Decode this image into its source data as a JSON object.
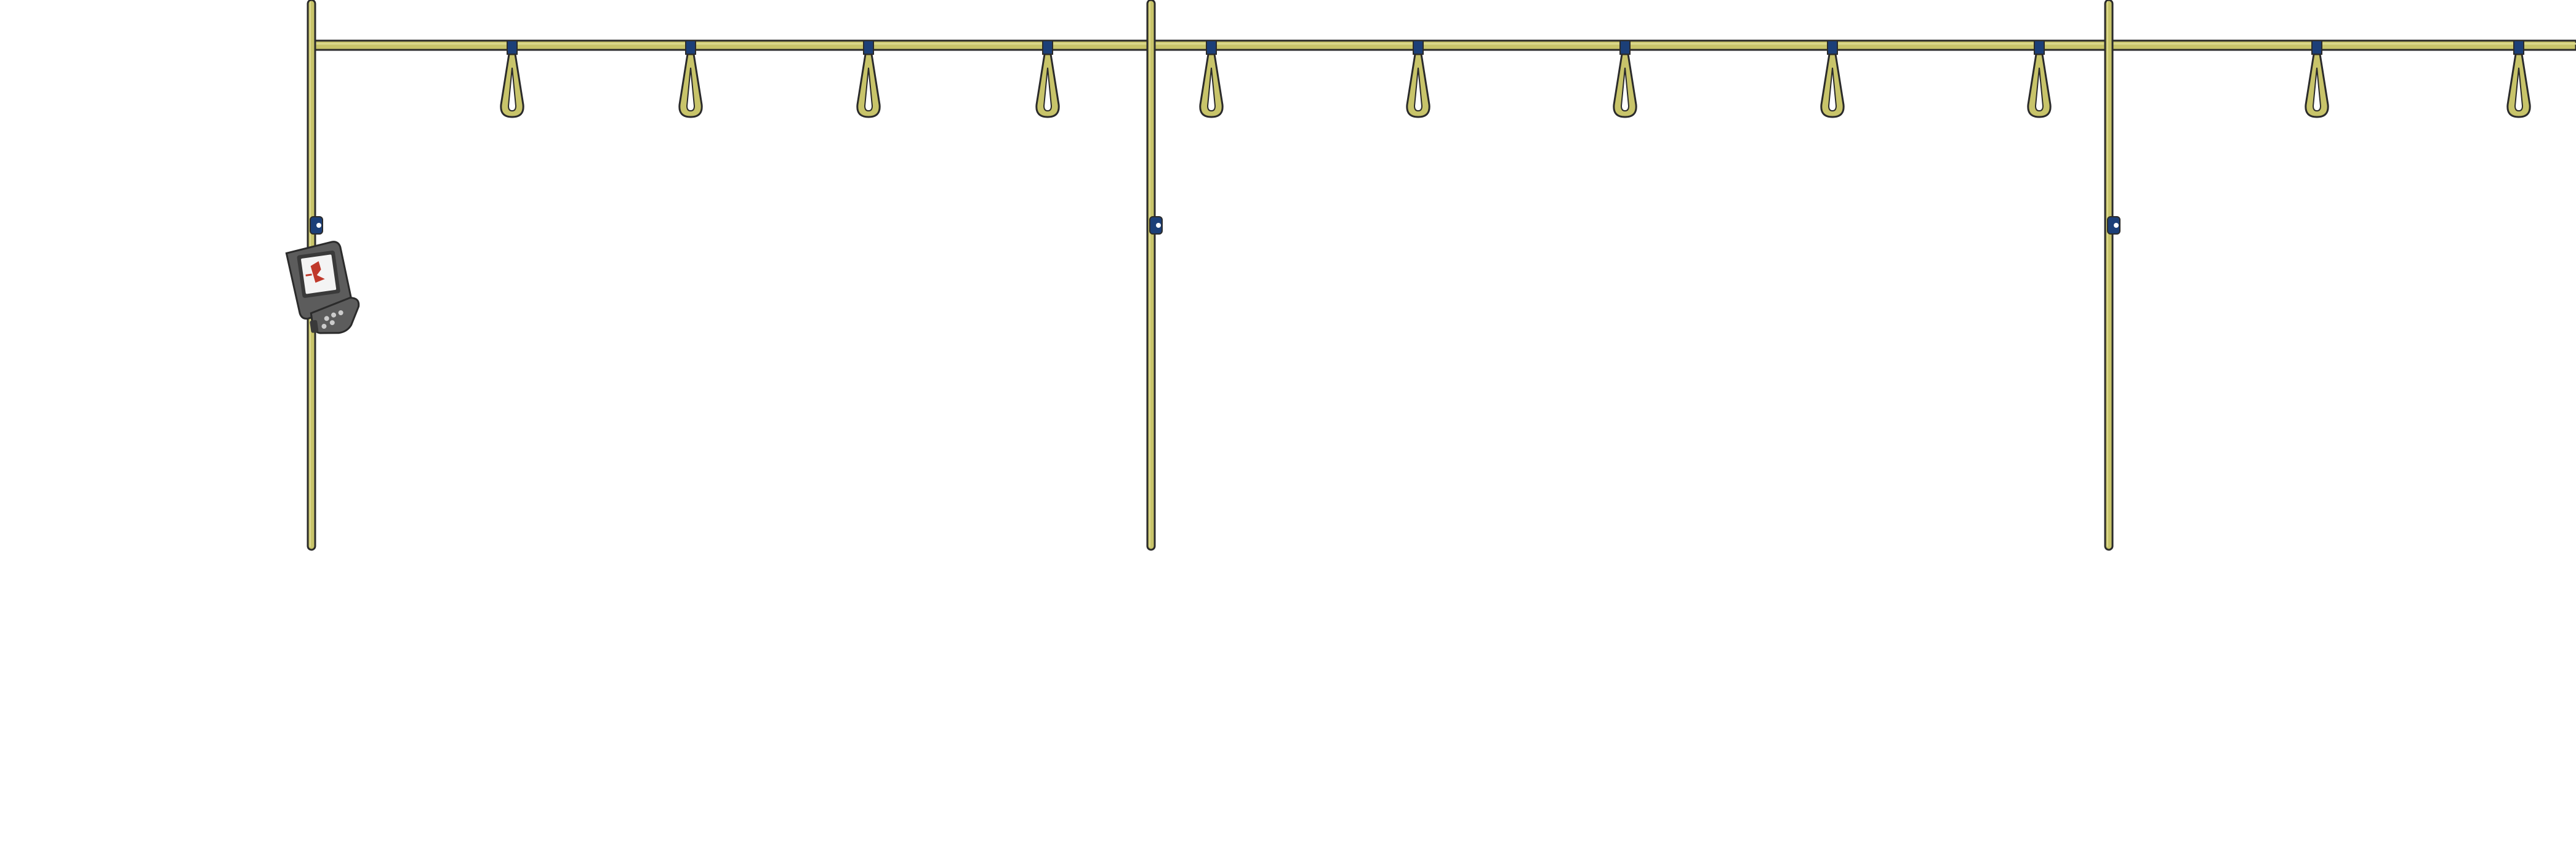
{
  "colors": {
    "background": "#ffffff",
    "pole": "#c8c46a",
    "pole_highlight": "#dcd98e",
    "outline": "#2b2b2b",
    "clip": "#1c3f78",
    "strap": "#c8c46a",
    "reader_body": "#5c5c5c",
    "reader_dark": "#3a3a3a",
    "reader_screen": "#f4f4f4",
    "reader_accent": "#c0392b"
  },
  "scene": {
    "poles": [
      {
        "name": "pole-1",
        "has_reader": true
      },
      {
        "name": "pole-2",
        "has_reader": false
      },
      {
        "name": "pole-3",
        "has_reader": false
      }
    ],
    "strap_count": 11,
    "reader_icon": "card-reader-icon"
  }
}
